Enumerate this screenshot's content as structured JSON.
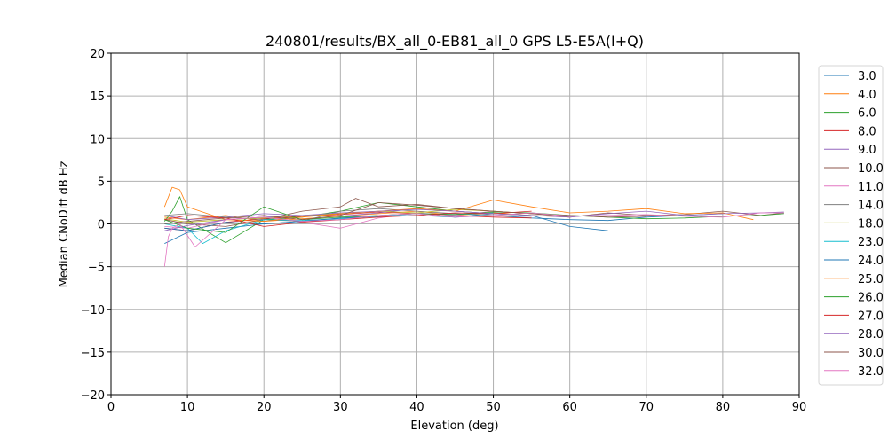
{
  "chart_data": {
    "type": "line",
    "title": "240801/results/BX_all_0-EB81_all_0 GPS L5-E5A(I+Q)",
    "xlabel": "Elevation (deg)",
    "ylabel": "Median CNoDiff dB Hz",
    "xlim": [
      0,
      90
    ],
    "ylim": [
      -20,
      20
    ],
    "xticks": [
      0,
      10,
      20,
      30,
      40,
      50,
      60,
      70,
      80,
      90
    ],
    "yticks": [
      -20,
      -15,
      -10,
      -5,
      0,
      5,
      10,
      15,
      20
    ],
    "grid": true,
    "legend_position": "right",
    "series": [
      {
        "name": "3.0",
        "color": "#1f77b4",
        "x": [
          7,
          10,
          15,
          20,
          25,
          30,
          35,
          40,
          45,
          50,
          55,
          60,
          65,
          70,
          75,
          80
        ],
        "values": [
          -2.3,
          -1.0,
          -0.5,
          0.0,
          0.3,
          0.5,
          1.0,
          1.2,
          0.8,
          1.0,
          0.7,
          0.5,
          0.4,
          0.8,
          1.0,
          1.2
        ]
      },
      {
        "name": "4.0",
        "color": "#ff7f0e",
        "x": [
          7,
          10,
          15,
          20,
          25,
          30,
          35,
          40,
          45,
          50,
          55,
          60
        ],
        "values": [
          0.8,
          0.5,
          1.0,
          0.3,
          0.6,
          0.9,
          1.2,
          1.5,
          1.0,
          1.3,
          1.0,
          0.8
        ]
      },
      {
        "name": "6.0",
        "color": "#2ca02c",
        "x": [
          7,
          8,
          9,
          10,
          15,
          20,
          25,
          30,
          35,
          40,
          45,
          50,
          55
        ],
        "values": [
          0.3,
          1.5,
          3.2,
          0.5,
          -2.2,
          0.5,
          0.8,
          1.5,
          2.5,
          2.0,
          1.5,
          1.2,
          1.0
        ]
      },
      {
        "name": "8.0",
        "color": "#d62728",
        "x": [
          7,
          10,
          15,
          20,
          25,
          30,
          35,
          40,
          45,
          50,
          55
        ],
        "values": [
          -0.5,
          -0.8,
          0.2,
          0.6,
          0.9,
          1.1,
          1.4,
          1.2,
          1.0,
          0.8,
          0.7
        ]
      },
      {
        "name": "9.0",
        "color": "#9467bd",
        "x": [
          7,
          10,
          15,
          20,
          25,
          30,
          35,
          40,
          45,
          50
        ],
        "values": [
          1.0,
          0.5,
          0.8,
          1.2,
          1.0,
          0.9,
          1.3,
          1.8,
          1.5,
          1.2
        ]
      },
      {
        "name": "10.0",
        "color": "#8c564b",
        "x": [
          7,
          10,
          15,
          20,
          25,
          30,
          32,
          35,
          40,
          45,
          50,
          55,
          60,
          65,
          70,
          75,
          80,
          85,
          88
        ],
        "values": [
          0.5,
          0.0,
          -0.3,
          0.5,
          1.5,
          2.0,
          3.0,
          2.0,
          2.3,
          1.8,
          1.5,
          1.2,
          0.8,
          1.3,
          1.0,
          1.1,
          1.5,
          1.0,
          1.3
        ]
      },
      {
        "name": "11.0",
        "color": "#e377c2",
        "x": [
          7,
          10,
          15,
          20,
          25,
          30,
          35,
          40,
          45,
          50
        ],
        "values": [
          -0.3,
          -0.5,
          0.5,
          0.8,
          0.2,
          -0.5,
          0.7,
          1.3,
          1.0,
          1.5
        ]
      },
      {
        "name": "14.0",
        "color": "#7f7f7f",
        "x": [
          7,
          10,
          15,
          20,
          25,
          30,
          35,
          40,
          45,
          50,
          55
        ],
        "values": [
          1.0,
          1.2,
          0.8,
          0.5,
          0.3,
          1.5,
          1.8,
          1.5,
          1.2,
          1.0,
          0.9
        ]
      },
      {
        "name": "18.0",
        "color": "#bcbd22",
        "x": [
          7,
          10,
          15,
          20,
          25,
          30,
          35,
          40,
          45,
          50,
          55
        ],
        "values": [
          0.6,
          0.2,
          0.5,
          0.7,
          1.0,
          1.2,
          1.5,
          1.3,
          1.7,
          1.5,
          1.2
        ]
      },
      {
        "name": "23.0",
        "color": "#17becf",
        "x": [
          7,
          10,
          12,
          15,
          20,
          25,
          30,
          35,
          40,
          45,
          50
        ],
        "values": [
          0.0,
          -0.5,
          -2.3,
          -0.8,
          0.5,
          0.4,
          0.6,
          0.9,
          1.2,
          1.1,
          1.3
        ]
      },
      {
        "name": "24.0",
        "color": "#1f77b4",
        "x": [
          7,
          10,
          15,
          20,
          25,
          30,
          35,
          40,
          45,
          50,
          55,
          60,
          65
        ],
        "values": [
          -0.5,
          -0.8,
          0.2,
          0.0,
          0.3,
          0.7,
          0.9,
          1.0,
          0.8,
          1.2,
          1.0,
          -0.3,
          -0.8
        ]
      },
      {
        "name": "25.0",
        "color": "#ff7f0e",
        "x": [
          7,
          8,
          9,
          10,
          15,
          20,
          25,
          30,
          35,
          40,
          45,
          50,
          55,
          60,
          65,
          70,
          75,
          80,
          84
        ],
        "values": [
          2.0,
          4.3,
          4.0,
          2.0,
          0.5,
          0.3,
          0.8,
          1.2,
          1.5,
          1.8,
          1.5,
          2.8,
          2.0,
          1.3,
          1.5,
          1.8,
          1.2,
          1.3,
          0.5
        ]
      },
      {
        "name": "26.0",
        "color": "#2ca02c",
        "x": [
          7,
          10,
          15,
          20,
          25,
          30,
          35,
          40,
          45,
          50,
          55,
          60,
          65,
          70,
          75,
          80,
          85,
          88
        ],
        "values": [
          0.5,
          -0.5,
          -1.0,
          2.0,
          0.5,
          0.8,
          1.0,
          1.2,
          1.1,
          1.4,
          1.3,
          1.0,
          0.8,
          0.6,
          0.7,
          0.9,
          1.0,
          1.2
        ]
      },
      {
        "name": "27.0",
        "color": "#d62728",
        "x": [
          7,
          10,
          15,
          20,
          25,
          30,
          35,
          40,
          45,
          50,
          55
        ],
        "values": [
          0.5,
          1.0,
          0.7,
          -0.3,
          0.2,
          0.5,
          0.8,
          1.0,
          1.3,
          1.2,
          1.5
        ]
      },
      {
        "name": "28.0",
        "color": "#9467bd",
        "x": [
          7,
          10,
          15,
          20,
          25,
          30,
          35,
          40,
          45,
          50,
          55,
          60,
          65,
          70,
          75,
          80,
          85,
          88
        ],
        "values": [
          -0.8,
          -0.2,
          0.5,
          0.8,
          1.0,
          1.3,
          1.5,
          1.7,
          1.5,
          1.2,
          1.0,
          0.8,
          1.2,
          1.5,
          1.0,
          1.2,
          1.3,
          1.4
        ]
      },
      {
        "name": "30.0",
        "color": "#8c564b",
        "x": [
          7,
          10,
          15,
          20,
          25,
          30,
          35,
          40,
          45,
          50,
          55,
          60,
          65,
          70
        ],
        "values": [
          0.0,
          0.3,
          0.7,
          1.0,
          0.5,
          1.0,
          2.5,
          2.2,
          1.8,
          1.5,
          1.2,
          1.0,
          0.8,
          0.9
        ]
      },
      {
        "name": "32.0",
        "color": "#e377c2",
        "x": [
          7,
          7.5,
          8,
          9,
          11,
          15,
          20,
          25,
          30,
          35,
          40,
          45,
          50,
          55,
          60,
          65,
          70,
          75,
          80,
          85,
          88
        ],
        "values": [
          -5.0,
          -1.5,
          -0.5,
          0.0,
          -2.7,
          0.5,
          0.8,
          0.3,
          0.5,
          1.0,
          1.2,
          0.8,
          1.0,
          1.3,
          0.9,
          1.0,
          1.1,
          0.9,
          0.8,
          1.3,
          1.3
        ]
      }
    ]
  }
}
